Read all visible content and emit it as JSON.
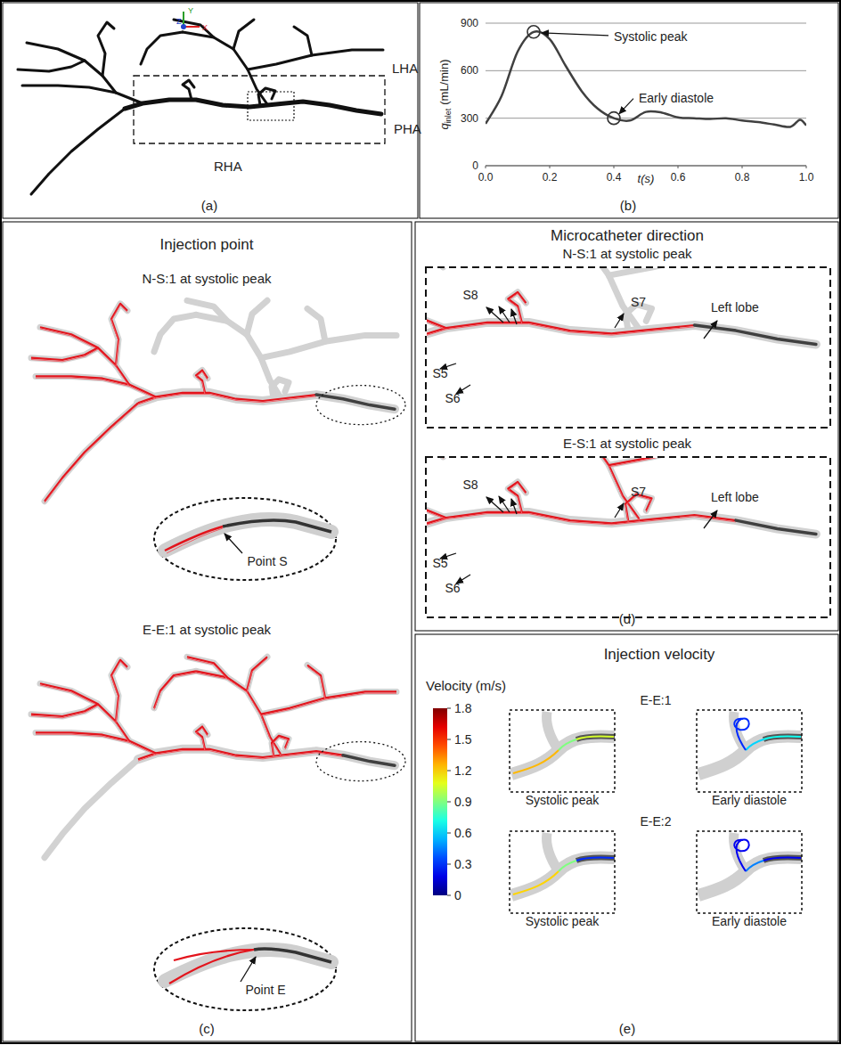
{
  "figure": {
    "panel_a": {
      "label": "(a)",
      "vessel_labels": [
        "LHA",
        "PHA",
        "RHA"
      ],
      "axis_labels": [
        "Y",
        "Z",
        "X"
      ]
    },
    "panel_c": {
      "label": "(c)",
      "title": "Injection point",
      "cases": [
        {
          "title": "N-S:1 at systolic peak",
          "point": "Point S"
        },
        {
          "title": "E-E:1 at systolic peak",
          "point": "Point E"
        }
      ]
    },
    "panel_d": {
      "label": "(d)",
      "title": "Microcatheter direction",
      "cases": [
        {
          "title": "N-S:1 at systolic peak",
          "targets": [
            "S8",
            "S7",
            "Left lobe",
            "S5",
            "S6"
          ]
        },
        {
          "title": "E-S:1 at systolic peak",
          "targets": [
            "S8",
            "S7",
            "Left lobe",
            "S5",
            "S6"
          ]
        }
      ]
    },
    "panel_e": {
      "label": "(e)",
      "title": "Injection velocity",
      "colorbar": {
        "label": "Velocity (m/s)",
        "range": [
          0,
          1.8
        ],
        "ticks": [
          0,
          0.3,
          0.6,
          0.9,
          1.2,
          1.5,
          1.8
        ]
      },
      "cases": [
        {
          "title": "E-E:1",
          "views": [
            {
              "label": "Systolic peak",
              "velocities": [
                1.05,
                0.9,
                1.25
              ]
            },
            {
              "label": "Early diastole",
              "velocities": [
                0.7,
                0.6,
                0.3
              ]
            }
          ]
        },
        {
          "title": "E-E:2",
          "views": [
            {
              "label": "Systolic peak",
              "velocities": [
                0.3,
                0.9,
                1.2
              ]
            },
            {
              "label": "Early diastole",
              "velocities": [
                0.2,
                0.45,
                0.2
              ]
            }
          ]
        }
      ]
    }
  },
  "chart_data": {
    "type": "line",
    "label": "(b)",
    "x_label": "t(s)",
    "y_label": {
      "symbol": "q",
      "subscript": "inlet",
      "unit": "(mL/min)"
    },
    "x": [
      0,
      0.05,
      0.1,
      0.15,
      0.2,
      0.25,
      0.3,
      0.35,
      0.4,
      0.45,
      0.5,
      0.55,
      0.6,
      0.65,
      0.7,
      0.75,
      0.8,
      0.85,
      0.9,
      0.95,
      0.98,
      1.0
    ],
    "values": [
      265,
      440,
      720,
      845,
      800,
      630,
      470,
      360,
      300,
      285,
      340,
      335,
      305,
      300,
      295,
      300,
      285,
      275,
      260,
      245,
      290,
      255
    ],
    "color": "#404040",
    "xlim": [
      0,
      1
    ],
    "xticks": [
      {
        "value": 0,
        "label": "0.0"
      },
      0.2,
      0.4,
      0.6,
      0.8,
      {
        "value": 1,
        "label": "1.0"
      }
    ],
    "ylim": [
      0,
      900
    ],
    "yticks": [
      0,
      300,
      600,
      900
    ],
    "grid": true,
    "annotations": [
      {
        "text": "Systolic peak",
        "x": 0.15,
        "y": 845
      },
      {
        "text": "Early diastole",
        "x": 0.4,
        "y": 300
      }
    ]
  }
}
